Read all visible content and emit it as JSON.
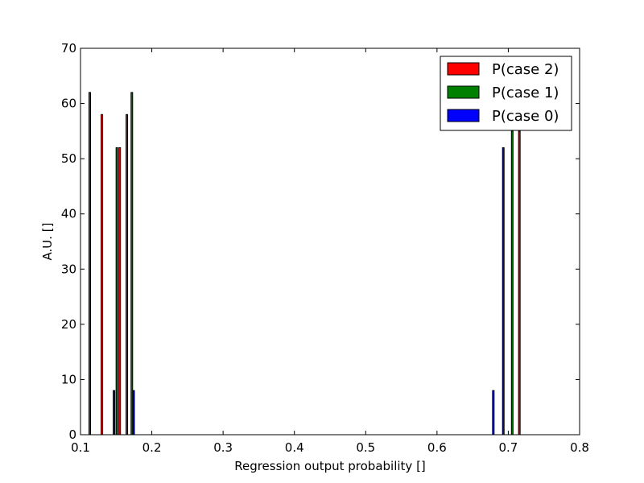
{
  "chart_data": {
    "type": "bar",
    "xlabel": "Regression output probability []",
    "ylabel": "A.U. []",
    "xlim": [
      0.1,
      0.8
    ],
    "ylim": [
      0,
      70
    ],
    "xticks": [
      "0.1",
      "0.2",
      "0.3",
      "0.4",
      "0.5",
      "0.6",
      "0.7",
      "0.8"
    ],
    "yticks": [
      "0",
      "10",
      "20",
      "30",
      "40",
      "50",
      "60",
      "70"
    ],
    "grid": false,
    "legend_position": "top-right",
    "series": [
      {
        "name": "P(case 2)",
        "color": "#ff0000",
        "x": [
          0.113,
          0.13,
          0.155,
          0.165,
          0.7155
        ],
        "values": [
          62,
          58,
          52,
          58,
          55
        ]
      },
      {
        "name": "P(case 1)",
        "color": "#008000",
        "x": [
          0.151,
          0.172,
          0.7055
        ],
        "values": [
          52,
          62,
          55
        ]
      },
      {
        "name": "P(case 0)",
        "color": "#0000ff",
        "x": [
          0.147,
          0.1745,
          0.679,
          0.693
        ],
        "values": [
          8,
          8,
          8,
          52
        ]
      }
    ]
  }
}
